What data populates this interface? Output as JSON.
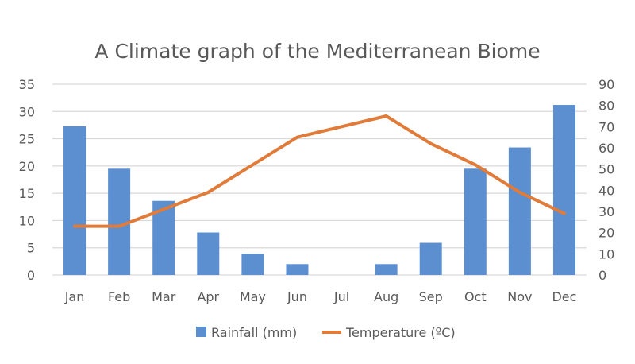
{
  "chart_data": {
    "type": "bar+line",
    "title": "A Climate graph of the Mediterranean Biome",
    "categories": [
      "Jan",
      "Feb",
      "Mar",
      "Apr",
      "May",
      "Jun",
      "Jul",
      "Aug",
      "Sep",
      "Oct",
      "Nov",
      "Dec"
    ],
    "series": [
      {
        "name": "Rainfall (mm)",
        "type": "bar",
        "axis": "left",
        "color": "#5b8fd0",
        "values": [
          27.3,
          19.5,
          13.6,
          7.8,
          3.9,
          2.0,
          0,
          2.0,
          5.9,
          19.5,
          23.4,
          31.2
        ]
      },
      {
        "name": "Temperature (ºC)",
        "type": "line",
        "axis": "right",
        "color": "#e07b39",
        "values": [
          23,
          23,
          31,
          39,
          52,
          65,
          70,
          75,
          62,
          52,
          39,
          29
        ]
      }
    ],
    "y_left": {
      "min": 0,
      "max": 35,
      "step": 5,
      "ticks": [
        "0",
        "5",
        "10",
        "15",
        "20",
        "25",
        "30",
        "35"
      ]
    },
    "y_right": {
      "min": 0,
      "max": 90,
      "step": 10,
      "ticks": [
        "0",
        "10",
        "20",
        "30",
        "40",
        "50",
        "60",
        "70",
        "80",
        "90"
      ]
    },
    "grid": true,
    "legend": "bottom",
    "gridline_color": "#d9d9d9",
    "text_color": "#595959"
  }
}
